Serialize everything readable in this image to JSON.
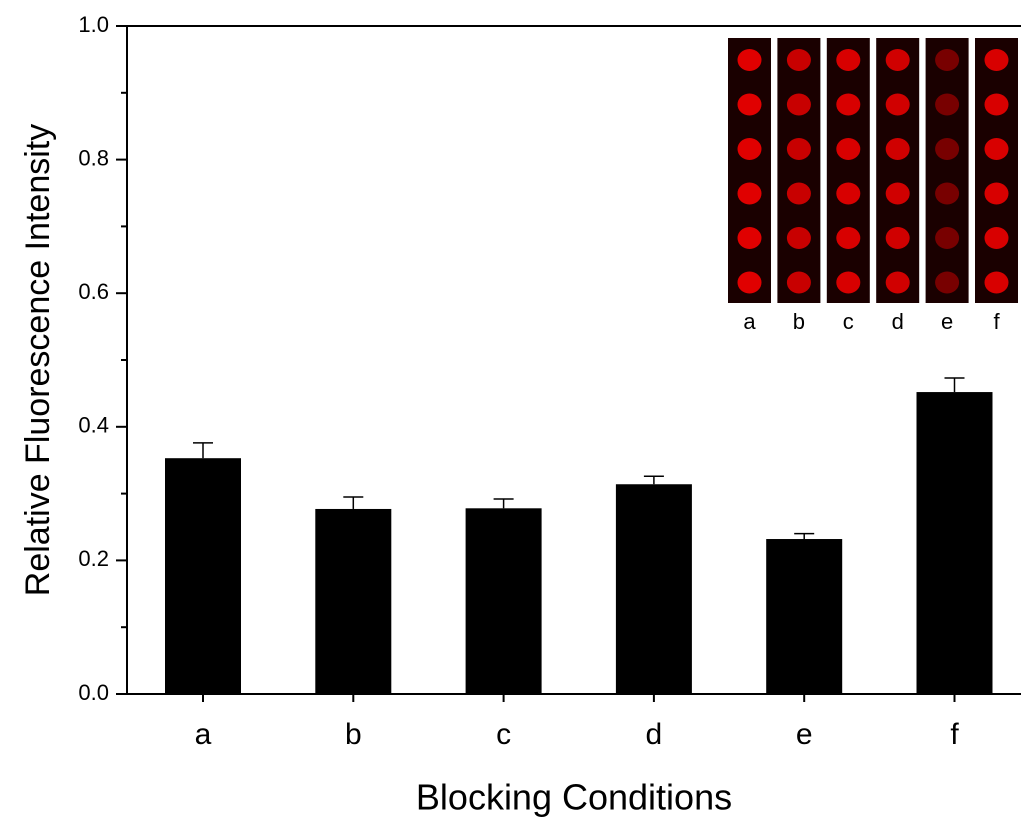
{
  "chart_data": {
    "type": "bar",
    "y_label": "Relative Fluorescence Intensity",
    "x_label": "Blocking Conditions",
    "categories": [
      "a",
      "b",
      "c",
      "d",
      "e",
      "f"
    ],
    "values": [
      0.353,
      0.277,
      0.278,
      0.314,
      0.232,
      0.452
    ],
    "errors": [
      0.023,
      0.018,
      0.014,
      0.012,
      0.008,
      0.021
    ],
    "color": "#000000",
    "ylim": [
      0,
      1
    ],
    "yticks": [
      {
        "value": 0,
        "label": "0.0"
      },
      {
        "value": 0.2,
        "label": "0.2"
      },
      {
        "value": 0.4,
        "label": "0.4"
      },
      {
        "value": 0.6,
        "label": "0.6"
      },
      {
        "value": 0.8,
        "label": "0.8"
      },
      {
        "value": 1,
        "label": "1.0"
      }
    ],
    "yminorticks": [
      0.1,
      0.3,
      0.5,
      0.7,
      0.9
    ],
    "inset": {
      "labels": [
        "a",
        "b",
        "c",
        "d",
        "e",
        "f"
      ],
      "spot_colors": [
        "#e00000",
        "#c80000",
        "#d80000",
        "#d00000",
        "#780000",
        "#d80000"
      ]
    }
  }
}
